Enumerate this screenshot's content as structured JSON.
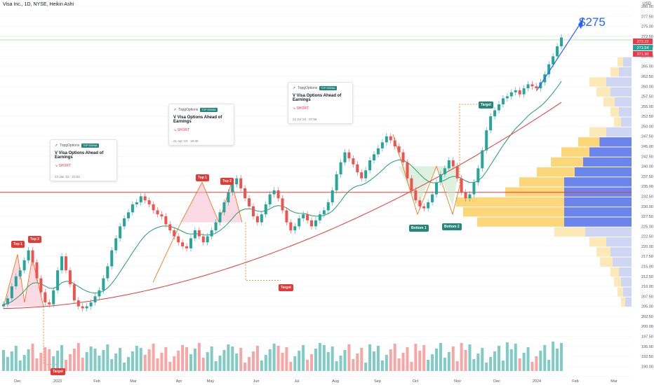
{
  "header": {
    "title": "Visa Inc., 1D, NYSE, Heikin Ashi",
    "currency": "USD"
  },
  "annotation_big": "$275",
  "cards": [
    {
      "brand": "TopgOptions",
      "badge": "TOP SIGNAL",
      "title": "V Visa Options Ahead of Earnings",
      "signal": "SHORT",
      "date": "23 Jan '23 · 21:52"
    },
    {
      "brand": "TopgOptions",
      "badge": "TOP SIGNAL",
      "title": "V Visa Options Ahead of Earnings",
      "signal": "SHORT",
      "date": "21 Apr '23 · 18:30"
    },
    {
      "brand": "TopgOptions",
      "badge": "TOP SIGNAL",
      "title": "V Visa Options Ahead of Earnings",
      "signal": "SHORT",
      "date": "22 Jul '23 · 07:59"
    }
  ],
  "pattern_labels": [
    "Top 1",
    "Top 2",
    "Top 1",
    "Top 2",
    "Bottom 1",
    "Bottom 2"
  ],
  "target_labels": [
    "Target",
    "Target",
    "Target"
  ],
  "chart_data": {
    "type": "candlestick",
    "style": "Heikin Ashi",
    "xlabels": [
      "Dec",
      "2023",
      "Feb",
      "Mar",
      "Apr",
      "May",
      "Jun",
      "Jul",
      "Aug",
      "Sep",
      "Oct",
      "Nov",
      "Dec",
      "2024",
      "Feb",
      "Mar"
    ],
    "y_ticks": [
      190,
      192.5,
      195,
      197.5,
      200,
      202.5,
      205,
      207.5,
      210,
      212.5,
      215,
      217.5,
      220,
      222.5,
      225,
      227.5,
      230,
      232.5,
      235,
      237.5,
      240,
      242.5,
      245,
      247.5,
      250,
      252.5,
      255,
      257.5,
      260,
      262.5,
      265,
      267.5,
      270,
      272.5,
      275,
      277.5,
      280
    ],
    "price_tags": [
      {
        "text": "272.22",
        "color": "#f23645"
      },
      {
        "text": "271.54",
        "color": "#26a69a"
      },
      {
        "text": "271.30",
        "color": "#f23645"
      }
    ],
    "horizontal_level": 233.5,
    "closes": [
      205.5,
      207.0,
      210.0,
      212.5,
      214.0,
      216.5,
      219.0,
      216.0,
      212.0,
      208.5,
      206.0,
      205.5,
      209.0,
      214.0,
      217.5,
      214.0,
      210.5,
      206.5,
      205.0,
      204.5,
      205.0,
      206.0,
      207.5,
      209.0,
      212.0,
      215.0,
      219.0,
      222.0,
      225.0,
      227.0,
      228.5,
      230.5,
      231.0,
      232.5,
      231.5,
      230.5,
      229.0,
      228.0,
      227.5,
      225.5,
      224.0,
      222.5,
      221.0,
      220.0,
      219.5,
      222.0,
      224.0,
      222.5,
      221.0,
      222.5,
      224.0,
      226.0,
      228.5,
      231.0,
      233.5,
      235.5,
      237.0,
      234.5,
      232.0,
      230.0,
      227.5,
      226.0,
      228.0,
      230.5,
      233.0,
      234.0,
      232.0,
      229.0,
      226.0,
      224.0,
      225.0,
      227.0,
      228.0,
      226.5,
      225.0,
      226.5,
      228.0,
      229.0,
      231.0,
      234.0,
      238.0,
      241.0,
      243.5,
      242.0,
      240.5,
      238.5,
      237.0,
      239.0,
      241.5,
      243.0,
      244.5,
      246.0,
      247.5,
      246.5,
      245.0,
      243.5,
      241.0,
      237.0,
      234.0,
      231.5,
      230.0,
      229.5,
      231.0,
      233.0,
      236.0,
      238.0,
      239.5,
      241.5,
      240.0,
      237.0,
      233.5,
      232.0,
      233.0,
      236.0,
      239.5,
      244.0,
      249.0,
      252.5,
      254.0,
      255.5,
      257.0,
      257.5,
      258.5,
      259.0,
      258.0,
      259.5,
      260.5,
      260.0,
      259.5,
      261.0,
      263.0,
      265.5,
      267.5,
      270.0,
      272.2
    ],
    "ema_slow_start_end": [
      204.5,
      256.0
    ],
    "volume_note": "volume bars bottom pane, teal up / red down",
    "profile_note": "volume profile on right side"
  }
}
